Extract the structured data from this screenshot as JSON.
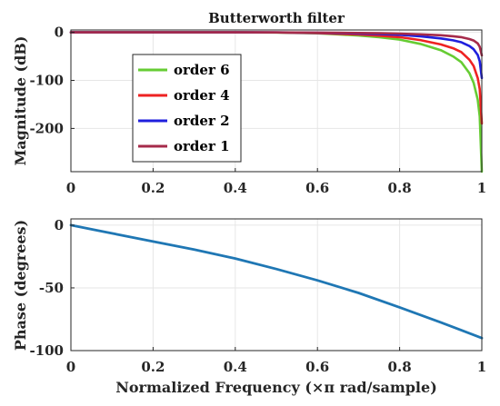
{
  "chart_data": [
    {
      "type": "line",
      "title": "Butterworth filter",
      "xlabel": "",
      "ylabel": "Magnitude (dB)",
      "xlim": [
        0,
        1
      ],
      "ylim": [
        -290,
        5
      ],
      "xticks": [
        0,
        0.2,
        0.4,
        0.6,
        0.8,
        1
      ],
      "xtick_labels": [
        "0",
        "0.2",
        "0.4",
        "0.6",
        "0.8",
        "1"
      ],
      "yticks": [
        0,
        -100,
        -200
      ],
      "ytick_labels": [
        "0",
        "-100",
        "-200"
      ],
      "grid": true,
      "legend_position": "left",
      "series": [
        {
          "name": "order 6",
          "color": "#66cc33",
          "x": [
            0,
            0.2,
            0.4,
            0.5,
            0.6,
            0.65,
            0.7,
            0.75,
            0.8,
            0.85,
            0.9,
            0.93,
            0.95,
            0.97,
            0.98,
            0.99,
            0.995,
            1.0
          ],
          "y": [
            0,
            0,
            0,
            -0.3,
            -2,
            -4,
            -6.5,
            -10,
            -15,
            -24,
            -37,
            -50,
            -62,
            -85,
            -105,
            -140,
            -175,
            -290
          ]
        },
        {
          "name": "order 4",
          "color": "#ee2222",
          "x": [
            0,
            0.2,
            0.4,
            0.5,
            0.6,
            0.65,
            0.7,
            0.75,
            0.8,
            0.85,
            0.9,
            0.93,
            0.95,
            0.97,
            0.98,
            0.99,
            0.995,
            1.0
          ],
          "y": [
            0,
            0,
            0,
            -0.2,
            -1.5,
            -3,
            -4.5,
            -7,
            -10,
            -16,
            -25,
            -33,
            -41,
            -57,
            -70,
            -95,
            -118,
            -190
          ]
        },
        {
          "name": "order 2",
          "color": "#1f1fdd",
          "x": [
            0,
            0.2,
            0.4,
            0.5,
            0.6,
            0.65,
            0.7,
            0.75,
            0.8,
            0.85,
            0.9,
            0.93,
            0.95,
            0.97,
            0.98,
            0.99,
            0.995,
            1.0
          ],
          "y": [
            0,
            0,
            0,
            -0.1,
            -0.8,
            -1.5,
            -2.3,
            -3.5,
            -5,
            -8,
            -12.5,
            -16.5,
            -20.5,
            -28.5,
            -35,
            -47,
            -60,
            -95
          ]
        },
        {
          "name": "order 1",
          "color": "#a52a4a",
          "x": [
            0,
            0.2,
            0.4,
            0.5,
            0.6,
            0.65,
            0.7,
            0.75,
            0.8,
            0.85,
            0.9,
            0.93,
            0.95,
            0.97,
            0.98,
            0.99,
            0.995,
            1.0
          ],
          "y": [
            0,
            0,
            0,
            -0.05,
            -0.4,
            -0.8,
            -1.2,
            -1.8,
            -2.5,
            -4,
            -6,
            -8,
            -10,
            -14,
            -17,
            -23,
            -30,
            -48
          ]
        }
      ]
    },
    {
      "type": "line",
      "title": "",
      "xlabel": "Normalized Frequency  (×π rad/sample)",
      "ylabel": "Phase (degrees)",
      "xlim": [
        0,
        1
      ],
      "ylim": [
        -100,
        5
      ],
      "xticks": [
        0,
        0.2,
        0.4,
        0.6,
        0.8,
        1
      ],
      "xtick_labels": [
        "0",
        "0.2",
        "0.4",
        "0.6",
        "0.8",
        "1"
      ],
      "yticks": [
        0,
        -50,
        -100
      ],
      "ytick_labels": [
        "0",
        "-50",
        "-100"
      ],
      "grid": true,
      "series": [
        {
          "color": "#1f77b4",
          "x": [
            0,
            0.1,
            0.2,
            0.3,
            0.4,
            0.5,
            0.6,
            0.7,
            0.8,
            0.9,
            1.0
          ],
          "y": [
            0,
            -6.5,
            -13,
            -19.5,
            -26.6,
            -35,
            -44,
            -54,
            -65.5,
            -77.5,
            -90
          ]
        }
      ]
    }
  ]
}
